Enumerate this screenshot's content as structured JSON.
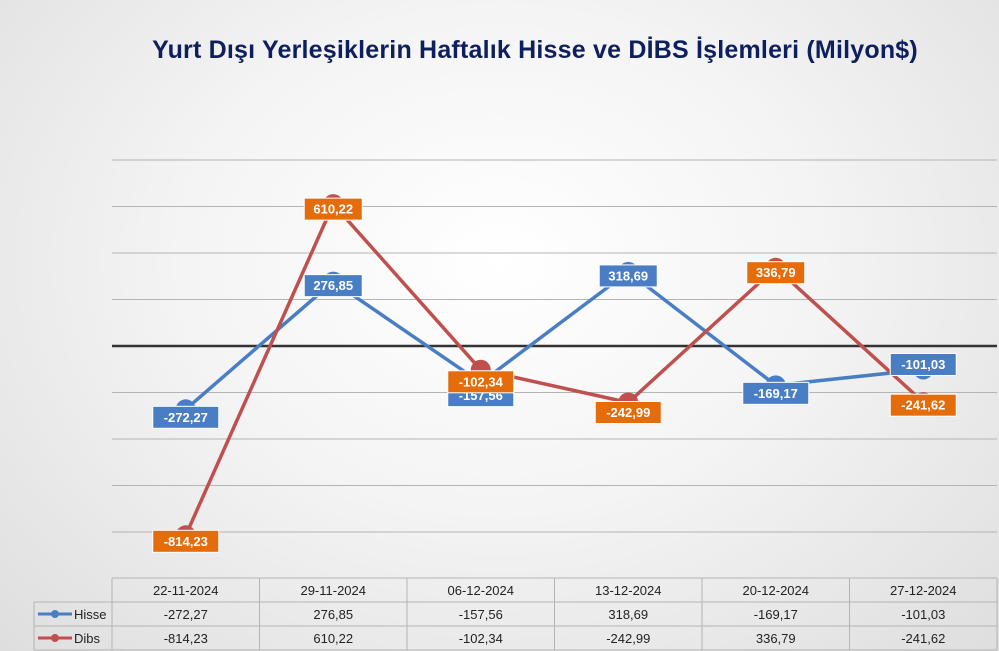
{
  "chart_data": {
    "type": "line",
    "title": "Yurt Dışı Yerleşiklerin Haftalık Hisse ve DİBS İşlemleri (Milyon$)",
    "categories": [
      "22-11-2024",
      "29-11-2024",
      "06-12-2024",
      "13-12-2024",
      "20-12-2024",
      "27-12-2024"
    ],
    "series": [
      {
        "name": "Hisse",
        "color": "#4a7ec4",
        "label_bg": "#4a7ec4",
        "values": [
          -272.27,
          276.85,
          -157.56,
          318.69,
          -169.17,
          -101.03
        ],
        "labels": [
          "-272,27",
          "276,85",
          "-157,56",
          "318,69",
          "-169,17",
          "-101,03"
        ]
      },
      {
        "name": "Dibs",
        "color": "#c0504d",
        "label_bg": "#e46c0a",
        "values": [
          -814.23,
          610.22,
          -102.34,
          -242.99,
          336.79,
          -241.62
        ],
        "labels": [
          "-814,23",
          "610,22",
          "-102,34",
          "-242,99",
          "336,79",
          "-241,62"
        ]
      }
    ],
    "ylim": [
      -1000,
      1000
    ],
    "grid": true,
    "legend": "data-table",
    "data_table": true
  }
}
